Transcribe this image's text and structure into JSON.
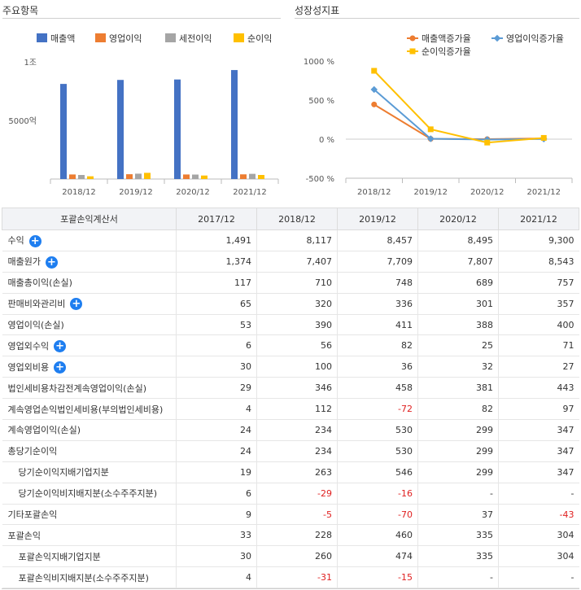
{
  "left_panel": {
    "title": "주요항목"
  },
  "right_panel": {
    "title": "성장성지표"
  },
  "chart_data": [
    {
      "type": "bar",
      "categories": [
        "2018/12",
        "2019/12",
        "2020/12",
        "2021/12"
      ],
      "series": [
        {
          "name": "매출액",
          "color": "#4472c4",
          "values": [
            8117,
            8457,
            8495,
            9300
          ]
        },
        {
          "name": "영업이익",
          "color": "#ed7d31",
          "values": [
            390,
            411,
            388,
            400
          ]
        },
        {
          "name": "세전이익",
          "color": "#a5a5a5",
          "values": [
            346,
            458,
            381,
            443
          ]
        },
        {
          "name": "순이익",
          "color": "#ffc000",
          "values": [
            234,
            530,
            299,
            347
          ]
        }
      ],
      "yticks": [
        {
          "value": 10000,
          "label": "1조"
        },
        {
          "value": 5000,
          "label": "5000억"
        }
      ],
      "ylim": [
        0,
        10000
      ],
      "legend": "top"
    },
    {
      "type": "line",
      "categories": [
        "2018/12",
        "2019/12",
        "2020/12",
        "2021/12"
      ],
      "series": [
        {
          "name": "매출액증가율",
          "color": "#ed7d31",
          "marker": "circle",
          "values": [
            444.4,
            4.2,
            0.4,
            9.5
          ]
        },
        {
          "name": "영업이익증가율",
          "color": "#5b9bd5",
          "marker": "diamond",
          "values": [
            635.8,
            5.4,
            -5.6,
            3.1
          ]
        },
        {
          "name": "순이익증가율",
          "color": "#ffc000",
          "marker": "square",
          "values": [
            875,
            126.5,
            -43.6,
            16.1
          ]
        }
      ],
      "yticks": [
        {
          "value": 1000,
          "label": "1000 %"
        },
        {
          "value": 500,
          "label": "500 %"
        },
        {
          "value": 0,
          "label": "0 %"
        },
        {
          "value": -500,
          "label": "-500 %"
        }
      ],
      "ylim": [
        -500,
        1000
      ],
      "legend": "top"
    }
  ],
  "table": {
    "headers": [
      "포괄손익계산서",
      "2017/12",
      "2018/12",
      "2019/12",
      "2020/12",
      "2021/12"
    ],
    "rows": [
      {
        "label": "수익",
        "expand": true,
        "indent": false,
        "values": [
          "1,491",
          "8,117",
          "8,457",
          "8,495",
          "9,300"
        ]
      },
      {
        "label": "매출원가",
        "expand": true,
        "indent": false,
        "values": [
          "1,374",
          "7,407",
          "7,709",
          "7,807",
          "8,543"
        ]
      },
      {
        "label": "매출총이익(손실)",
        "expand": false,
        "indent": false,
        "values": [
          "117",
          "710",
          "748",
          "689",
          "757"
        ]
      },
      {
        "label": "판매비와관리비",
        "expand": true,
        "indent": false,
        "values": [
          "65",
          "320",
          "336",
          "301",
          "357"
        ]
      },
      {
        "label": "영업이익(손실)",
        "expand": false,
        "indent": false,
        "values": [
          "53",
          "390",
          "411",
          "388",
          "400"
        ]
      },
      {
        "label": "영업외수익",
        "expand": true,
        "indent": false,
        "values": [
          "6",
          "56",
          "82",
          "25",
          "71"
        ]
      },
      {
        "label": "영업외비용",
        "expand": true,
        "indent": false,
        "values": [
          "30",
          "100",
          "36",
          "32",
          "27"
        ]
      },
      {
        "label": "법인세비용차감전계속영업이익(손실)",
        "expand": false,
        "indent": false,
        "values": [
          "29",
          "346",
          "458",
          "381",
          "443"
        ]
      },
      {
        "label": "계속영업손익법인세비용(부의법인세비용)",
        "expand": false,
        "indent": false,
        "values": [
          "4",
          "112",
          "-72",
          "82",
          "97"
        ]
      },
      {
        "label": "계속영업이익(손실)",
        "expand": false,
        "indent": false,
        "values": [
          "24",
          "234",
          "530",
          "299",
          "347"
        ]
      },
      {
        "label": "총당기순이익",
        "expand": false,
        "indent": false,
        "values": [
          "24",
          "234",
          "530",
          "299",
          "347"
        ]
      },
      {
        "label": "당기순이익지배기업지분",
        "expand": false,
        "indent": true,
        "values": [
          "19",
          "263",
          "546",
          "299",
          "347"
        ]
      },
      {
        "label": "당기순이익비지배지분(소수주주지분)",
        "expand": false,
        "indent": true,
        "values": [
          "6",
          "-29",
          "-16",
          "-",
          "-"
        ]
      },
      {
        "label": "기타포괄손익",
        "expand": false,
        "indent": false,
        "values": [
          "9",
          "-5",
          "-70",
          "37",
          "-43"
        ]
      },
      {
        "label": "포괄손익",
        "expand": false,
        "indent": false,
        "values": [
          "33",
          "228",
          "460",
          "335",
          "304"
        ]
      },
      {
        "label": "포괄손익지배기업지분",
        "expand": false,
        "indent": true,
        "values": [
          "30",
          "260",
          "474",
          "335",
          "304"
        ]
      },
      {
        "label": "포괄손익비지배지분(소수주주지분)",
        "expand": false,
        "indent": true,
        "values": [
          "4",
          "-31",
          "-15",
          "-",
          "-"
        ]
      }
    ]
  }
}
